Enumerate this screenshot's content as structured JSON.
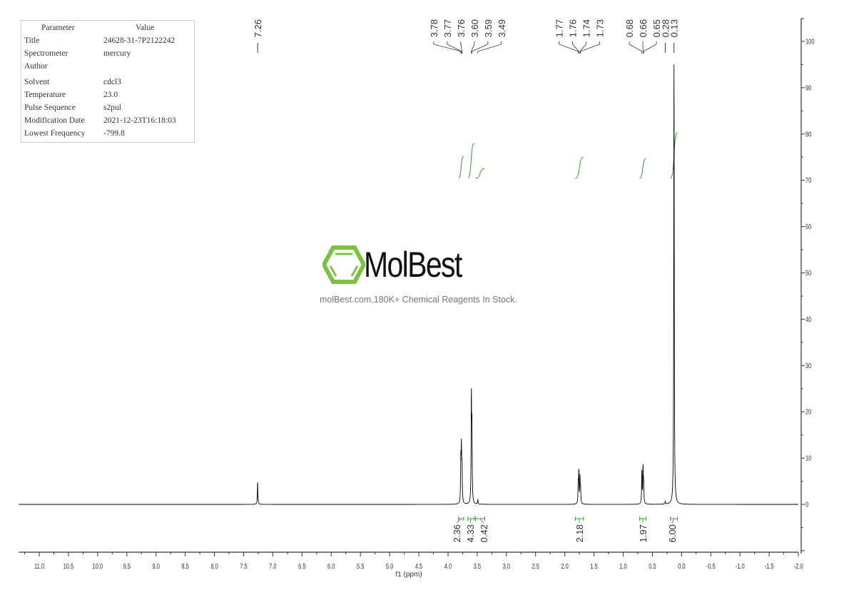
{
  "parameters": {
    "header": [
      "Parameter",
      "Value"
    ],
    "rows": [
      [
        "Title",
        "24628-31-7P2122242"
      ],
      [
        "Spectrometer",
        "mercury"
      ],
      [
        "Author",
        ""
      ],
      [
        "Solvent",
        "cdcl3"
      ],
      [
        "Temperature",
        "23.0"
      ],
      [
        "Pulse Sequence",
        "s2pul"
      ],
      [
        "Modification Date",
        "2021-12-23T16:18:03"
      ],
      [
        "Lowest Frequency",
        "-799.8"
      ]
    ]
  },
  "watermark": {
    "name": "MolBest",
    "tagline": "molBest.com,180K+ Chemical Reagents In Stock.",
    "logo_color": "#7dc142"
  },
  "chart_data": {
    "type": "line",
    "title": "",
    "xlabel": "f1 (ppm)",
    "ylabel": "",
    "xlim": [
      11.35,
      -2.0
    ],
    "ylim": [
      -10,
      105
    ],
    "x_ticks": [
      11.0,
      10.5,
      10.0,
      9.5,
      9.0,
      8.5,
      8.0,
      7.5,
      7.0,
      6.5,
      6.0,
      5.5,
      5.0,
      4.5,
      4.0,
      3.5,
      3.0,
      2.5,
      2.0,
      1.5,
      1.0,
      0.5,
      0.0,
      -0.5,
      -1.0,
      -1.5,
      -2.0
    ],
    "x_tick_labels": [
      "11.0",
      "10.5",
      "10.0",
      "9.5",
      "9.0",
      "8.5",
      "8.0",
      "7.5",
      "7.0",
      "6.5",
      "6.0",
      "5.5",
      "5.0",
      "4.5",
      "4.0",
      "3.5",
      "3.0",
      "2.5",
      "2.0",
      "1.5",
      "1.0",
      "0.5",
      "0.0",
      "-0.5",
      "-1.0",
      "-1.5",
      "-2.0"
    ],
    "y_ticks": [
      0,
      10,
      20,
      30,
      40,
      50,
      60,
      70,
      80,
      90,
      100
    ],
    "y_tick_labels": [
      "0",
      "10",
      "20",
      "30",
      "40",
      "50",
      "60",
      "70",
      "80",
      "90",
      "100"
    ],
    "line_color": "#000000",
    "integral_color": "#3a9a3a",
    "peaks": [
      {
        "ppm": 7.26,
        "intensity": 4.8
      },
      {
        "ppm": 3.78,
        "intensity": 9
      },
      {
        "ppm": 3.77,
        "intensity": 11
      },
      {
        "ppm": 3.76,
        "intensity": 7
      },
      {
        "ppm": 3.6,
        "intensity": 22
      },
      {
        "ppm": 3.59,
        "intensity": 15
      },
      {
        "ppm": 3.49,
        "intensity": 1
      },
      {
        "ppm": 1.77,
        "intensity": 4
      },
      {
        "ppm": 1.76,
        "intensity": 6.5
      },
      {
        "ppm": 1.74,
        "intensity": 5.5
      },
      {
        "ppm": 1.73,
        "intensity": 3
      },
      {
        "ppm": 0.68,
        "intensity": 7
      },
      {
        "ppm": 0.66,
        "intensity": 7.5
      },
      {
        "ppm": 0.65,
        "intensity": 4
      },
      {
        "ppm": 0.28,
        "intensity": 0.6
      },
      {
        "ppm": 0.13,
        "intensity": 95
      }
    ],
    "peak_labels": [
      {
        "group": [
          "7.26"
        ],
        "ppm": [
          7.26
        ]
      },
      {
        "group": [
          "3.78",
          "3.77",
          "3.76",
          "3.60",
          "3.59",
          "3.49"
        ],
        "ppm": [
          3.78,
          3.77,
          3.76,
          3.6,
          3.59,
          3.49
        ]
      },
      {
        "group": [
          "1.77",
          "1.76",
          "1.74",
          "1.73"
        ],
        "ppm": [
          1.77,
          1.76,
          1.74,
          1.73
        ]
      },
      {
        "group": [
          "0.68",
          "0.66",
          "0.65"
        ],
        "ppm": [
          0.68,
          0.66,
          0.65
        ]
      },
      {
        "group": [
          "0.28"
        ],
        "ppm": [
          0.28
        ]
      },
      {
        "group": [
          "0.13"
        ],
        "ppm": [
          0.13
        ]
      }
    ],
    "integrals": [
      {
        "from": 3.82,
        "to": 3.73,
        "value": "2.36"
      },
      {
        "from": 3.66,
        "to": 3.55,
        "value": "4.33"
      },
      {
        "from": 3.53,
        "to": 3.37,
        "value": "0.42"
      },
      {
        "from": 1.82,
        "to": 1.68,
        "value": "2.18"
      },
      {
        "from": 0.72,
        "to": 0.61,
        "value": "1.97"
      },
      {
        "from": 0.19,
        "to": 0.07,
        "value": "6.00"
      }
    ]
  }
}
